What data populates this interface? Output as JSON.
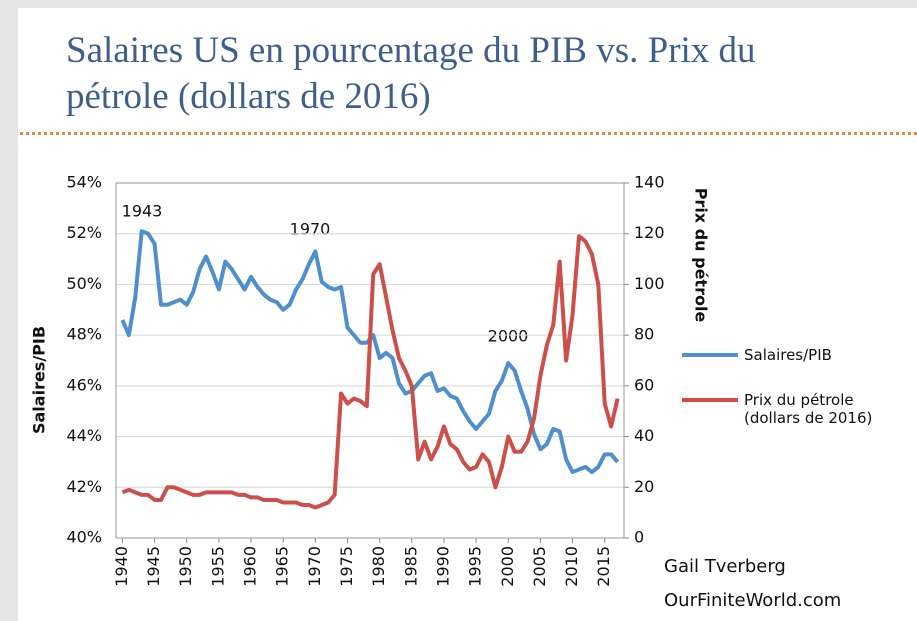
{
  "chart_data": {
    "type": "line",
    "title": "Salaires US en pourcentage du PIB vs. Prix du pétrole (dollars de 2016)",
    "ylabel": "Salaires/PIB",
    "y2label": "Prix du pétrole",
    "annotations": [
      "1943",
      "1970",
      "2000"
    ],
    "credits": [
      "Gail Tverberg",
      "OurFiniteWorld.com"
    ],
    "x": [
      1940,
      1941,
      1942,
      1943,
      1944,
      1945,
      1946,
      1947,
      1948,
      1949,
      1950,
      1951,
      1952,
      1953,
      1954,
      1955,
      1956,
      1957,
      1958,
      1959,
      1960,
      1961,
      1962,
      1963,
      1964,
      1965,
      1966,
      1967,
      1968,
      1969,
      1970,
      1971,
      1972,
      1973,
      1974,
      1975,
      1976,
      1977,
      1978,
      1979,
      1980,
      1981,
      1982,
      1983,
      1984,
      1985,
      1986,
      1987,
      1988,
      1989,
      1990,
      1991,
      1992,
      1993,
      1994,
      1995,
      1996,
      1997,
      1998,
      1999,
      2000,
      2001,
      2002,
      2003,
      2004,
      2005,
      2006,
      2007,
      2008,
      2009,
      2010,
      2011,
      2012,
      2013,
      2014,
      2015,
      2016,
      2017
    ],
    "xlim": [
      1939,
      2018
    ],
    "xticks": [
      1940,
      1945,
      1950,
      1955,
      1960,
      1965,
      1970,
      1975,
      1980,
      1985,
      1990,
      1995,
      2000,
      2005,
      2010,
      2015
    ],
    "ylim": [
      40,
      54
    ],
    "yticks": [
      {
        "value": 40,
        "label": "40%"
      },
      {
        "value": 42,
        "label": "42%"
      },
      {
        "value": 44,
        "label": "44%"
      },
      {
        "value": 46,
        "label": "46%"
      },
      {
        "value": 48,
        "label": "48%"
      },
      {
        "value": 50,
        "label": "50%"
      },
      {
        "value": 52,
        "label": "52%"
      },
      {
        "value": 54,
        "label": "54%"
      }
    ],
    "y2lim": [
      0,
      140
    ],
    "y2ticks": [
      0,
      20,
      40,
      60,
      80,
      100,
      120,
      140
    ],
    "grid": true,
    "series": [
      {
        "name": "Salaires/PIB",
        "color": "#4f8fd0",
        "values": [
          48.6,
          48.0,
          49.5,
          52.1,
          52.0,
          51.6,
          49.2,
          49.2,
          49.3,
          49.4,
          49.2,
          49.7,
          50.6,
          51.1,
          50.5,
          49.8,
          50.9,
          50.6,
          50.2,
          49.8,
          50.3,
          49.9,
          49.6,
          49.4,
          49.3,
          49.0,
          49.2,
          49.8,
          50.2,
          50.8,
          51.3,
          50.1,
          49.9,
          49.8,
          49.9,
          48.3,
          48.0,
          47.7,
          47.7,
          48.0,
          47.1,
          47.3,
          47.1,
          46.1,
          45.7,
          45.8,
          46.1,
          46.4,
          46.5,
          45.8,
          45.9,
          45.6,
          45.5,
          45.0,
          44.6,
          44.3,
          44.6,
          44.9,
          45.8,
          46.2,
          46.9,
          46.6,
          45.8,
          45.1,
          44.1,
          43.5,
          43.7,
          44.3,
          44.2,
          43.1,
          42.6,
          42.7,
          42.8,
          42.6,
          42.8,
          43.3,
          43.3,
          43.0
        ]
      },
      {
        "name": "Prix du pétrole (dollars de 2016)",
        "color": "#cc4f4a",
        "axis": "y2",
        "values": [
          18,
          19,
          18,
          17,
          17,
          15,
          15,
          20,
          20,
          19,
          18,
          17,
          17,
          18,
          18,
          18,
          18,
          18,
          17,
          17,
          16,
          16,
          15,
          15,
          15,
          14,
          14,
          14,
          13,
          13,
          12,
          13,
          14,
          17,
          57,
          53,
          55,
          54,
          52,
          104,
          108,
          95,
          82,
          71,
          66,
          60,
          31,
          38,
          31,
          36,
          44,
          37,
          35,
          30,
          27,
          28,
          33,
          30,
          20,
          28,
          40,
          34,
          34,
          38,
          47,
          64,
          76,
          84,
          109,
          70,
          88,
          119,
          117,
          112,
          100,
          53,
          44,
          55
        ]
      }
    ]
  }
}
